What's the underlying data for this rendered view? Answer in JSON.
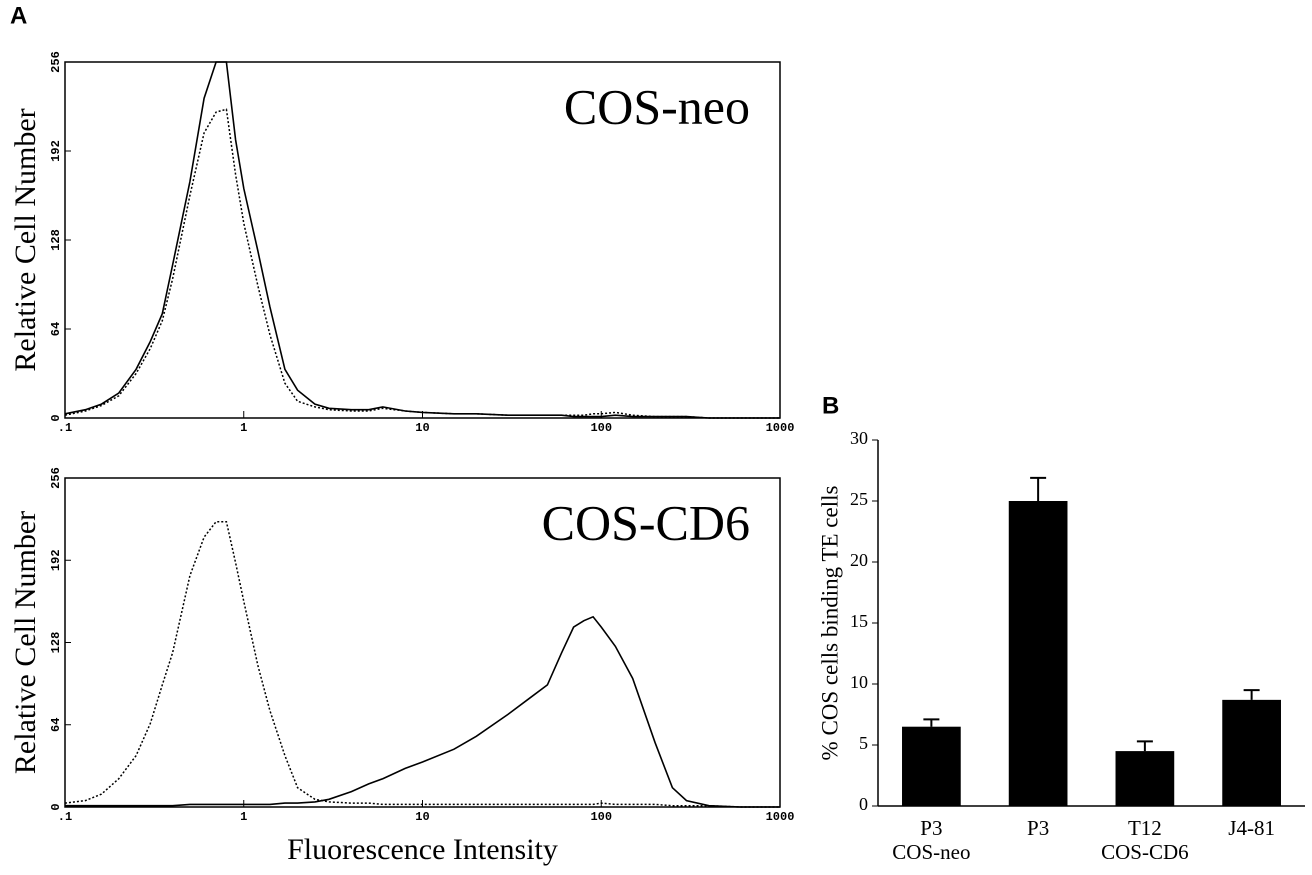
{
  "chart_data": [
    {
      "type": "line",
      "panel": "A",
      "title": "COS-neo",
      "y_label": "Relative Cell Number",
      "log_x": true,
      "x": [
        0.1,
        0.13,
        0.16,
        0.2,
        0.25,
        0.3,
        0.35,
        0.4,
        0.5,
        0.6,
        0.7,
        0.8,
        0.9,
        1,
        1.2,
        1.4,
        1.7,
        2,
        2.5,
        3,
        4,
        5,
        6,
        8,
        10,
        15,
        20,
        30,
        40,
        50,
        60,
        70,
        80,
        90,
        100,
        120,
        150,
        200,
        250,
        300,
        400,
        600,
        1000
      ],
      "series": [
        {
          "color": "#000000",
          "style": "solid",
          "values": [
            3,
            6,
            10,
            18,
            35,
            55,
            75,
            110,
            170,
            230,
            256,
            256,
            200,
            165,
            120,
            80,
            35,
            20,
            10,
            7,
            6,
            6,
            8,
            5,
            4,
            3,
            3,
            2,
            2,
            2,
            2,
            1,
            1,
            1,
            1,
            2,
            1,
            1,
            1,
            1,
            0,
            0,
            0
          ]
        },
        {
          "color": "#000000",
          "style": "dotted",
          "values": [
            2,
            5,
            9,
            16,
            32,
            50,
            70,
            100,
            160,
            205,
            220,
            222,
            175,
            140,
            95,
            60,
            25,
            12,
            8,
            6,
            5,
            5,
            7,
            5,
            4,
            3,
            3,
            2,
            2,
            2,
            2,
            2,
            2,
            3,
            3,
            4,
            2,
            1,
            1,
            1,
            0,
            0,
            0
          ]
        }
      ],
      "xlim": [
        0.1,
        1000
      ],
      "xticks": [
        {
          "value": 0.1,
          "label": ".1"
        },
        1,
        10,
        100,
        1000
      ],
      "ylim": [
        0,
        256
      ],
      "yticks": [
        0,
        64,
        128,
        192,
        256
      ]
    },
    {
      "type": "line",
      "title": "COS-CD6",
      "y_label": "Relative Cell Number",
      "x_label": "Fluorescence Intensity",
      "log_x": true,
      "x": [
        0.1,
        0.13,
        0.16,
        0.2,
        0.25,
        0.3,
        0.35,
        0.4,
        0.5,
        0.6,
        0.7,
        0.8,
        0.9,
        1,
        1.2,
        1.4,
        1.7,
        2,
        2.5,
        3,
        4,
        5,
        6,
        8,
        10,
        15,
        20,
        30,
        40,
        50,
        60,
        70,
        80,
        90,
        100,
        120,
        150,
        200,
        250,
        300,
        400,
        600,
        1000
      ],
      "series": [
        {
          "color": "#000000",
          "style": "solid",
          "values": [
            1,
            1,
            1,
            1,
            1,
            1,
            1,
            1,
            2,
            2,
            2,
            2,
            2,
            2,
            2,
            2,
            3,
            3,
            4,
            6,
            12,
            18,
            22,
            30,
            35,
            45,
            55,
            72,
            85,
            95,
            120,
            140,
            145,
            148,
            140,
            125,
            100,
            50,
            15,
            5,
            1,
            0,
            0
          ]
        },
        {
          "color": "#000000",
          "style": "dotted",
          "values": [
            3,
            5,
            10,
            22,
            40,
            65,
            95,
            120,
            180,
            210,
            222,
            222,
            190,
            160,
            110,
            75,
            40,
            15,
            6,
            4,
            3,
            3,
            2,
            2,
            2,
            2,
            2,
            2,
            2,
            2,
            2,
            2,
            2,
            2,
            3,
            2,
            2,
            2,
            1,
            1,
            1,
            0,
            0
          ]
        }
      ],
      "xlim": [
        0.1,
        1000
      ],
      "xticks": [
        {
          "value": 0.1,
          "label": ".1"
        },
        1,
        10,
        100,
        1000
      ],
      "ylim": [
        0,
        256
      ],
      "yticks": [
        0,
        64,
        128,
        192,
        256
      ]
    },
    {
      "type": "bar",
      "panel": "B",
      "y_label": "% COS cells binding TE cells",
      "categories": [
        "P3",
        "P3",
        "T12",
        "J4-81"
      ],
      "subcategories": [
        "COS-neo",
        null,
        "COS-CD6",
        null
      ],
      "values": [
        6.5,
        25,
        4.5,
        8.7
      ],
      "errors": [
        0.6,
        1.9,
        0.8,
        0.8
      ],
      "color": "#000000",
      "ylim": [
        0,
        30
      ],
      "yticks": [
        0,
        5,
        10,
        15,
        20,
        25,
        30
      ]
    }
  ]
}
